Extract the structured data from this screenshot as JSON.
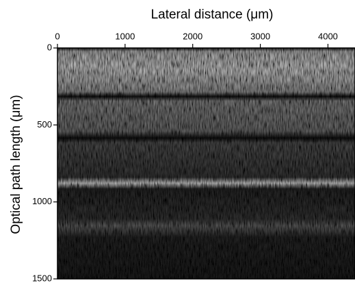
{
  "chart_data": {
    "type": "image",
    "xlabel": "Lateral distance (μm)",
    "ylabel": "Optical path length (μm)",
    "xlim": [
      0,
      4400
    ],
    "xticks": [
      0,
      1000,
      2000,
      3000,
      4000
    ],
    "ylim": [
      0,
      1500
    ],
    "yticks": [
      0,
      500,
      1000,
      1500
    ],
    "x_axis_position": "top",
    "y_inverted": true
  }
}
